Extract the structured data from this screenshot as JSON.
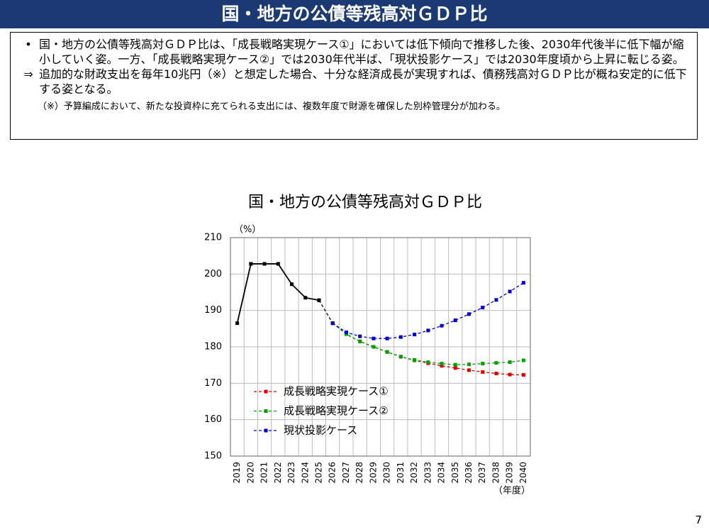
{
  "header": {
    "title": "国・地方の公債等残高対ＧＤＰ比"
  },
  "notes": {
    "bullets": [
      {
        "marker": "•",
        "text": "国・地方の公債等残高対ＧＤＰ比は、「成長戦略実現ケース①」においては低下傾向で推移した後、2030年代後半に低下幅が縮小していく姿。一方、「成長戦略実現ケース②」では2030年代半ば、「現状投影ケース」では2030年度頃から上昇に転じる姿。"
      },
      {
        "marker": "⇒",
        "text": "追加的な財政支出を毎年10兆円（※）と想定した場合、十分な経済成長が実現すれば、債務残高対ＧＤＰ比が概ね安定的に低下する姿となる。"
      }
    ],
    "footnote": "（※）予算編成において、新たな投資枠に充てられる支出には、複数年度で財源を確保した別枠管理分が加わる。"
  },
  "chart_data": {
    "type": "line",
    "title": "国・地方の公債等残高対ＧＤＰ比",
    "y_unit_label": "（%）",
    "x_unit_label": "（年度）",
    "categories": [
      "2019",
      "2020",
      "2021",
      "2022",
      "2023",
      "2024",
      "2025",
      "2026",
      "2027",
      "2028",
      "2029",
      "2030",
      "2031",
      "2032",
      "2033",
      "2034",
      "2035",
      "2036",
      "2037",
      "2038",
      "2039",
      "2040"
    ],
    "ylim": [
      150,
      210
    ],
    "yticks": [
      150,
      160,
      170,
      180,
      190,
      200,
      210
    ],
    "grid": true,
    "legend": "bottom-left",
    "series": [
      {
        "color": "#000000",
        "dashed": false,
        "values": [
          186.5,
          202.8,
          202.8,
          202.8,
          197.2,
          193.5,
          192.8,
          null,
          null,
          null,
          null,
          null,
          null,
          null,
          null,
          null,
          null,
          null,
          null,
          null,
          null,
          null
        ]
      },
      {
        "color": "#000000",
        "dashed": true,
        "values": [
          null,
          null,
          null,
          null,
          null,
          null,
          192.8,
          186.5,
          null,
          null,
          null,
          null,
          null,
          null,
          null,
          null,
          null,
          null,
          null,
          null,
          null,
          null
        ]
      },
      {
        "name": "成長戦略実現ケース①",
        "color": "#e00000",
        "dashed": true,
        "values": [
          null,
          null,
          null,
          null,
          null,
          null,
          null,
          186.5,
          183.5,
          181.5,
          180.0,
          178.6,
          177.3,
          176.3,
          175.5,
          174.8,
          174.2,
          173.6,
          173.1,
          172.7,
          172.4,
          172.3
        ]
      },
      {
        "name": "成長戦略実現ケース②",
        "color": "#00a000",
        "dashed": true,
        "values": [
          null,
          null,
          null,
          null,
          null,
          null,
          null,
          186.5,
          183.5,
          181.5,
          180.0,
          178.6,
          177.3,
          176.4,
          175.8,
          175.4,
          175.1,
          175.2,
          175.4,
          175.6,
          175.8,
          176.3
        ]
      },
      {
        "name": "現状投影ケース",
        "color": "#0000d0",
        "dashed": true,
        "values": [
          null,
          null,
          null,
          null,
          null,
          null,
          null,
          186.5,
          184.0,
          182.9,
          182.3,
          182.3,
          182.7,
          183.4,
          184.5,
          185.8,
          187.3,
          189.0,
          190.8,
          192.9,
          195.2,
          197.6
        ]
      }
    ]
  },
  "page_number": "7"
}
